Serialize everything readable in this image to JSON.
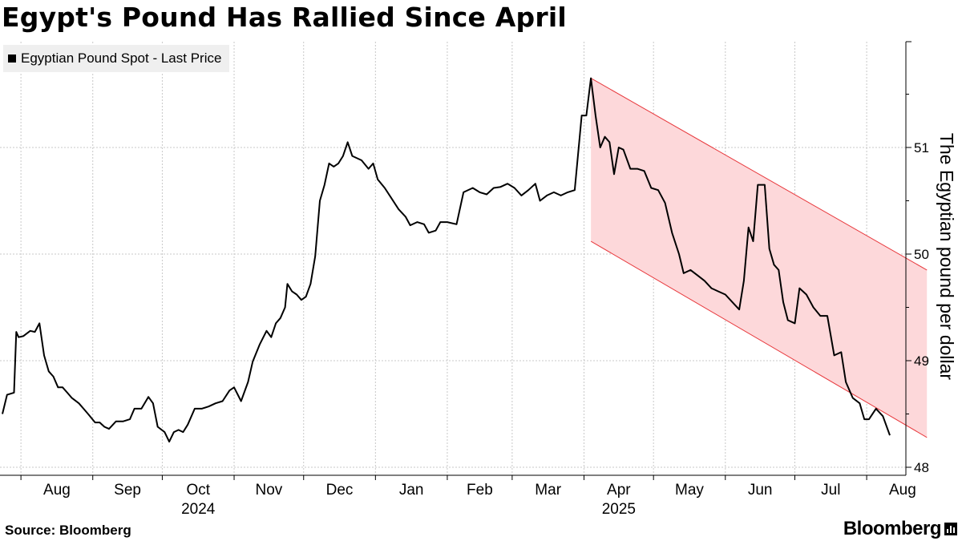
{
  "title": "Egypt's Pound Has Rallied Since April",
  "legend_label": "Egyptian Pound Spot - Last Price",
  "source": "Source: Bloomberg",
  "brand": "Bloomberg",
  "colors": {
    "line": "#000000",
    "channel_fill": "#fdd8da",
    "channel_edge": "#e8393d",
    "grid": "#c8c8c8"
  },
  "chart_data": {
    "type": "line",
    "title": "Egypt's Pound Has Rallied Since April",
    "ylabel": "The Egyptian pound per dollar",
    "ylim": [
      47.98,
      51.98
    ],
    "yticks": [
      48,
      49,
      50,
      51
    ],
    "x_months": [
      "Aug",
      "Sep",
      "Oct",
      "Nov",
      "Dec",
      "Jan",
      "Feb",
      "Mar",
      "Apr",
      "May",
      "Jun",
      "Jul",
      "Aug"
    ],
    "x_years": [
      "2024",
      "2025"
    ],
    "grid": true,
    "legend_position": "top-left",
    "series": [
      {
        "name": "Egyptian Pound Spot - Last Price",
        "points": [
          [
            "2024-07-24",
            48.5
          ],
          [
            "2024-07-26",
            48.68
          ],
          [
            "2024-07-29",
            48.7
          ],
          [
            "2024-07-30",
            49.27
          ],
          [
            "2024-07-31",
            49.22
          ],
          [
            "2024-08-02",
            49.23
          ],
          [
            "2024-08-05",
            49.28
          ],
          [
            "2024-08-07",
            49.27
          ],
          [
            "2024-08-09",
            49.35
          ],
          [
            "2024-08-11",
            49.05
          ],
          [
            "2024-08-13",
            48.9
          ],
          [
            "2024-08-15",
            48.85
          ],
          [
            "2024-08-17",
            48.75
          ],
          [
            "2024-08-19",
            48.75
          ],
          [
            "2024-08-21",
            48.7
          ],
          [
            "2024-08-23",
            48.65
          ],
          [
            "2024-08-26",
            48.6
          ],
          [
            "2024-08-28",
            48.55
          ],
          [
            "2024-08-30",
            48.5
          ],
          [
            "2024-09-02",
            48.42
          ],
          [
            "2024-09-04",
            48.42
          ],
          [
            "2024-09-06",
            48.38
          ],
          [
            "2024-09-08",
            48.36
          ],
          [
            "2024-09-11",
            48.43
          ],
          [
            "2024-09-14",
            48.43
          ],
          [
            "2024-09-17",
            48.45
          ],
          [
            "2024-09-19",
            48.55
          ],
          [
            "2024-09-22",
            48.55
          ],
          [
            "2024-09-25",
            48.66
          ],
          [
            "2024-09-27",
            48.6
          ],
          [
            "2024-09-29",
            48.38
          ],
          [
            "2024-10-02",
            48.33
          ],
          [
            "2024-10-04",
            48.24
          ],
          [
            "2024-10-06",
            48.33
          ],
          [
            "2024-10-08",
            48.35
          ],
          [
            "2024-10-10",
            48.33
          ],
          [
            "2024-10-12",
            48.4
          ],
          [
            "2024-10-15",
            48.55
          ],
          [
            "2024-10-18",
            48.55
          ],
          [
            "2024-10-21",
            48.57
          ],
          [
            "2024-10-24",
            48.6
          ],
          [
            "2024-10-27",
            48.62
          ],
          [
            "2024-10-30",
            48.72
          ],
          [
            "2024-11-01",
            48.75
          ],
          [
            "2024-11-04",
            48.62
          ],
          [
            "2024-11-07",
            48.8
          ],
          [
            "2024-11-09",
            48.99
          ],
          [
            "2024-11-12",
            49.15
          ],
          [
            "2024-11-15",
            49.28
          ],
          [
            "2024-11-17",
            49.22
          ],
          [
            "2024-11-19",
            49.35
          ],
          [
            "2024-11-21",
            49.4
          ],
          [
            "2024-11-23",
            49.5
          ],
          [
            "2024-11-24",
            49.72
          ],
          [
            "2024-11-26",
            49.65
          ],
          [
            "2024-11-28",
            49.62
          ],
          [
            "2024-11-30",
            49.57
          ],
          [
            "2024-12-02",
            49.6
          ],
          [
            "2024-12-04",
            49.72
          ],
          [
            "2024-12-06",
            49.98
          ],
          [
            "2024-12-08",
            50.5
          ],
          [
            "2024-12-10",
            50.65
          ],
          [
            "2024-12-12",
            50.85
          ],
          [
            "2024-12-14",
            50.82
          ],
          [
            "2024-12-16",
            50.85
          ],
          [
            "2024-12-18",
            50.92
          ],
          [
            "2024-12-20",
            51.05
          ],
          [
            "2024-12-22",
            50.92
          ],
          [
            "2024-12-26",
            50.88
          ],
          [
            "2024-12-29",
            50.8
          ],
          [
            "2024-12-31",
            50.85
          ],
          [
            "2025-01-02",
            50.7
          ],
          [
            "2025-01-05",
            50.62
          ],
          [
            "2025-01-08",
            50.52
          ],
          [
            "2025-01-11",
            50.42
          ],
          [
            "2025-01-14",
            50.35
          ],
          [
            "2025-01-16",
            50.27
          ],
          [
            "2025-01-19",
            50.3
          ],
          [
            "2025-01-22",
            50.28
          ],
          [
            "2025-01-24",
            50.2
          ],
          [
            "2025-01-27",
            50.22
          ],
          [
            "2025-01-29",
            50.3
          ],
          [
            "2025-02-01",
            50.3
          ],
          [
            "2025-02-05",
            50.28
          ],
          [
            "2025-02-08",
            50.58
          ],
          [
            "2025-02-12",
            50.62
          ],
          [
            "2025-02-15",
            50.58
          ],
          [
            "2025-02-18",
            50.56
          ],
          [
            "2025-02-21",
            50.62
          ],
          [
            "2025-02-24",
            50.63
          ],
          [
            "2025-02-27",
            50.66
          ],
          [
            "2025-03-02",
            50.62
          ],
          [
            "2025-03-05",
            50.55
          ],
          [
            "2025-03-08",
            50.6
          ],
          [
            "2025-03-11",
            50.66
          ],
          [
            "2025-03-13",
            50.5
          ],
          [
            "2025-03-16",
            50.55
          ],
          [
            "2025-03-19",
            50.58
          ],
          [
            "2025-03-22",
            50.55
          ],
          [
            "2025-03-25",
            50.58
          ],
          [
            "2025-03-28",
            50.6
          ],
          [
            "2025-03-31",
            51.3
          ],
          [
            "2025-04-02",
            51.3
          ],
          [
            "2025-04-04",
            51.65
          ],
          [
            "2025-04-06",
            51.3
          ],
          [
            "2025-04-08",
            51.0
          ],
          [
            "2025-04-10",
            51.1
          ],
          [
            "2025-04-12",
            51.05
          ],
          [
            "2025-04-14",
            50.75
          ],
          [
            "2025-04-16",
            51.0
          ],
          [
            "2025-04-18",
            50.98
          ],
          [
            "2025-04-21",
            50.8
          ],
          [
            "2025-04-24",
            50.8
          ],
          [
            "2025-04-27",
            50.78
          ],
          [
            "2025-04-30",
            50.62
          ],
          [
            "2025-05-03",
            50.6
          ],
          [
            "2025-05-06",
            50.48
          ],
          [
            "2025-05-09",
            50.2
          ],
          [
            "2025-05-12",
            50.0
          ],
          [
            "2025-05-14",
            49.82
          ],
          [
            "2025-05-17",
            49.85
          ],
          [
            "2025-05-20",
            49.8
          ],
          [
            "2025-05-23",
            49.75
          ],
          [
            "2025-05-26",
            49.68
          ],
          [
            "2025-05-29",
            49.65
          ],
          [
            "2025-06-01",
            49.62
          ],
          [
            "2025-06-04",
            49.55
          ],
          [
            "2025-06-07",
            49.48
          ],
          [
            "2025-06-09",
            49.75
          ],
          [
            "2025-06-11",
            50.25
          ],
          [
            "2025-06-13",
            50.12
          ],
          [
            "2025-06-15",
            50.65
          ],
          [
            "2025-06-18",
            50.65
          ],
          [
            "2025-06-20",
            50.05
          ],
          [
            "2025-06-22",
            49.9
          ],
          [
            "2025-06-24",
            49.85
          ],
          [
            "2025-06-26",
            49.55
          ],
          [
            "2025-06-28",
            49.38
          ],
          [
            "2025-07-01",
            49.35
          ],
          [
            "2025-07-03",
            49.68
          ],
          [
            "2025-07-06",
            49.62
          ],
          [
            "2025-07-09",
            49.5
          ],
          [
            "2025-07-12",
            49.42
          ],
          [
            "2025-07-15",
            49.42
          ],
          [
            "2025-07-18",
            49.05
          ],
          [
            "2025-07-21",
            49.08
          ],
          [
            "2025-07-23",
            48.8
          ],
          [
            "2025-07-26",
            48.65
          ],
          [
            "2025-07-29",
            48.6
          ],
          [
            "2025-07-31",
            48.45
          ],
          [
            "2025-08-02",
            48.45
          ],
          [
            "2025-08-05",
            48.55
          ],
          [
            "2025-08-08",
            48.48
          ],
          [
            "2025-08-11",
            48.3
          ]
        ]
      }
    ],
    "annotation": {
      "type": "descending channel",
      "start_date": "2025-04-04",
      "end_date": "2025-08-27",
      "upper": [
        51.65,
        49.85
      ],
      "lower": [
        50.12,
        48.28
      ]
    }
  }
}
